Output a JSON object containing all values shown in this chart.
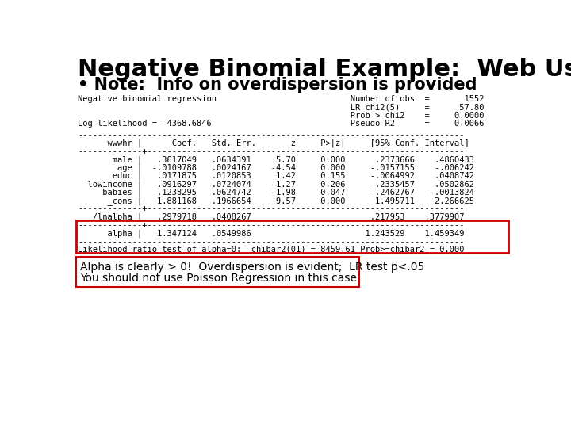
{
  "title": "Negative Binomial Example:  Web Use",
  "bullet": "• Note:  Info on overdispersion is provided",
  "bg_color": "#ffffff",
  "title_color": "#000000",
  "header_block": [
    "Negative binomial regression                           Number of obs  =       1552",
    "                                                       LR chi2(5)     =      57.80",
    "                                                       Prob > chi2    =     0.0000",
    "Log likelihood = -4368.6846                            Pseudo R2      =     0.0066"
  ],
  "sep_full": "------------------------------------------------------------------------------",
  "col_header": "      wwwhr |      Coef.   Std. Err.       z     P>|z|     [95% Conf. Interval]",
  "sep_mid": "-------------+----------------------------------------------------------------",
  "data_lines": [
    "       male |   .3617049   .0634391     5.70     0.000      .2373666    .4860433",
    "        age |  -.0109788   .0024167    -4.54     0.000     -.0157155    -.006242",
    "       educ |   .0171875   .0120853     1.42     0.155     -.0064992    .0408742",
    "  lowincome |  -.0916297   .0724074    -1.27     0.206     -.2335457    .0502862",
    "     babies |  -.1238295   .0624742    -1.98     0.047     -.2462767   -.0013824",
    "      _cons |   1.881168   .1966654     9.57     0.000      1.495711    2.266625"
  ],
  "lnalpha_line": "   /lnalpha |   .2979718   .0408267                        .217953    .3779907",
  "alpha_line": "      alpha |   1.347124   .0549986                       1.243529    1.459349",
  "lr_line": "Likelihood-ratio test of alpha=0:  chibar2(01) = 8459.61 Prob>=chibar2 = 0.000",
  "note_lines": [
    "Alpha is clearly > 0!  Overdispersion is evident;  LR test p<.05",
    "You should not use Poisson Regression in this case"
  ],
  "red_color": "#cc0000",
  "title_fontsize": 22,
  "bullet_fontsize": 15,
  "mono_fontsize": 7.5,
  "note_fontsize": 10
}
